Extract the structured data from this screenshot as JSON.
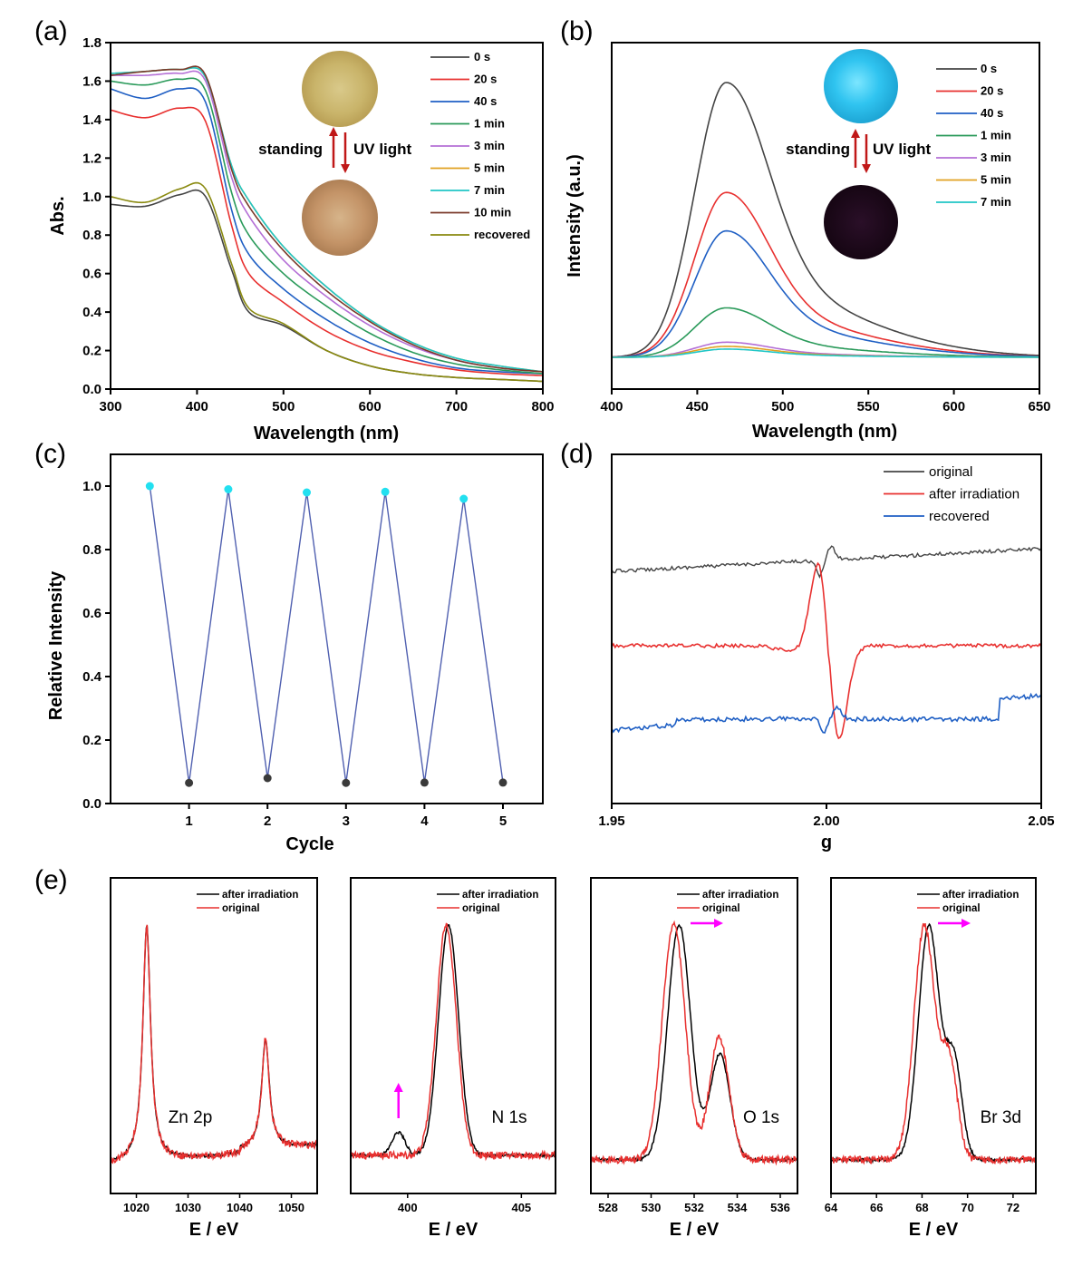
{
  "panel_labels": [
    "(a)",
    "(b)",
    "(c)",
    "(d)",
    "(e)"
  ],
  "chart_data": [
    {
      "id": "a",
      "type": "line",
      "xlabel": "Wavelength (nm)",
      "ylabel": "Abs.",
      "xlim": [
        300,
        800
      ],
      "ylim": [
        0.0,
        1.8
      ],
      "xticks": [
        300,
        400,
        500,
        600,
        700,
        800
      ],
      "yticks": [
        "0.0",
        "0.2",
        "0.4",
        "0.6",
        "0.8",
        "1.0",
        "1.2",
        "1.4",
        "1.6",
        "1.8"
      ],
      "annotations": {
        "top": "standing",
        "right": "UV light"
      },
      "series": [
        {
          "name": "0 s",
          "color": "#444444",
          "x": [
            300,
            340,
            380,
            410,
            440,
            460,
            500,
            550,
            600,
            650,
            700,
            750,
            800
          ],
          "y": [
            0.96,
            0.95,
            1.01,
            1.0,
            0.62,
            0.4,
            0.33,
            0.2,
            0.12,
            0.08,
            0.06,
            0.05,
            0.04
          ]
        },
        {
          "name": "20 s",
          "color": "#e8302f",
          "x": [
            300,
            340,
            380,
            410,
            440,
            460,
            500,
            550,
            600,
            650,
            700,
            750,
            800
          ],
          "y": [
            1.45,
            1.41,
            1.46,
            1.39,
            0.85,
            0.6,
            0.45,
            0.3,
            0.2,
            0.14,
            0.1,
            0.08,
            0.07
          ]
        },
        {
          "name": "40 s",
          "color": "#1f5fc4",
          "x": [
            300,
            340,
            380,
            410,
            440,
            460,
            500,
            550,
            600,
            650,
            700,
            750,
            800
          ],
          "y": [
            1.56,
            1.51,
            1.56,
            1.49,
            0.93,
            0.7,
            0.52,
            0.36,
            0.24,
            0.16,
            0.11,
            0.09,
            0.08
          ]
        },
        {
          "name": "1 min",
          "color": "#2a9a5a",
          "x": [
            300,
            340,
            380,
            410,
            440,
            460,
            500,
            550,
            600,
            650,
            700,
            750,
            800
          ],
          "y": [
            1.6,
            1.58,
            1.61,
            1.55,
            1.02,
            0.8,
            0.6,
            0.43,
            0.29,
            0.19,
            0.13,
            0.1,
            0.08
          ]
        },
        {
          "name": "3 min",
          "color": "#b46fd6",
          "x": [
            300,
            340,
            380,
            410,
            440,
            460,
            500,
            550,
            600,
            650,
            700,
            750,
            800
          ],
          "y": [
            1.63,
            1.63,
            1.64,
            1.6,
            1.1,
            0.9,
            0.67,
            0.48,
            0.33,
            0.22,
            0.15,
            0.11,
            0.09
          ]
        },
        {
          "name": "5 min",
          "color": "#e0a020",
          "x": [
            300,
            340,
            380,
            410,
            440,
            460,
            500,
            550,
            600,
            650,
            700,
            750,
            800
          ],
          "y": [
            1.64,
            1.65,
            1.66,
            1.62,
            1.16,
            0.98,
            0.74,
            0.53,
            0.36,
            0.24,
            0.16,
            0.12,
            0.09
          ]
        },
        {
          "name": "7 min",
          "color": "#20c6c6",
          "x": [
            300,
            340,
            380,
            410,
            440,
            460,
            500,
            550,
            600,
            650,
            700,
            750,
            800
          ],
          "y": [
            1.64,
            1.65,
            1.66,
            1.62,
            1.16,
            0.98,
            0.74,
            0.53,
            0.36,
            0.24,
            0.16,
            0.12,
            0.09
          ]
        },
        {
          "name": "10 min",
          "color": "#7a3a2a",
          "x": [
            300,
            340,
            380,
            410,
            440,
            460,
            500,
            550,
            600,
            650,
            700,
            750,
            800
          ],
          "y": [
            1.63,
            1.65,
            1.66,
            1.63,
            1.14,
            0.95,
            0.72,
            0.51,
            0.35,
            0.23,
            0.15,
            0.11,
            0.09
          ]
        },
        {
          "name": "recovered",
          "color": "#8a8a10",
          "x": [
            300,
            340,
            380,
            410,
            440,
            460,
            500,
            550,
            600,
            650,
            700,
            750,
            800
          ],
          "y": [
            1.0,
            0.97,
            1.04,
            1.04,
            0.65,
            0.42,
            0.34,
            0.2,
            0.12,
            0.08,
            0.06,
            0.05,
            0.04
          ]
        }
      ]
    },
    {
      "id": "b",
      "type": "line",
      "xlabel": "Wavelength (nm)",
      "ylabel": "Intensity (a.u.)",
      "xlim": [
        400,
        650
      ],
      "ylim": [
        0,
        1.1
      ],
      "xticks": [
        400,
        450,
        500,
        550,
        600,
        650
      ],
      "annotations": {
        "top": "standing",
        "right": "UV light"
      },
      "series": [
        {
          "name": "0 s",
          "color": "#444444",
          "peak": 1.0,
          "tail": 0.2
        },
        {
          "name": "20 s",
          "color": "#e8302f",
          "peak": 0.6,
          "tail": 0.18
        },
        {
          "name": "40 s",
          "color": "#1f5fc4",
          "peak": 0.46,
          "tail": 0.17
        },
        {
          "name": "1 min",
          "color": "#2a9a5a",
          "peak": 0.18,
          "tail": 0.06
        },
        {
          "name": "3 min",
          "color": "#b46fd6",
          "peak": 0.055,
          "tail": 0.02
        },
        {
          "name": "5 min",
          "color": "#e0a020",
          "peak": 0.04,
          "tail": 0.015
        },
        {
          "name": "7 min",
          "color": "#20c6c6",
          "peak": 0.03,
          "tail": 0.012
        }
      ]
    },
    {
      "id": "c",
      "type": "line",
      "xlabel": "Cycle",
      "ylabel": "Relative Intensity",
      "xlim": [
        0,
        5.5
      ],
      "ylim": [
        0.0,
        1.1
      ],
      "xticks": [
        1,
        2,
        3,
        4,
        5
      ],
      "yticks": [
        "0.0",
        "0.2",
        "0.4",
        "0.6",
        "0.8",
        "1.0"
      ],
      "line_color": "#5060b0",
      "points": [
        {
          "x": 0.5,
          "y": 1.0,
          "kind": "on"
        },
        {
          "x": 1.0,
          "y": 0.065,
          "kind": "off"
        },
        {
          "x": 1.5,
          "y": 0.99,
          "kind": "on"
        },
        {
          "x": 2.0,
          "y": 0.08,
          "kind": "off"
        },
        {
          "x": 2.5,
          "y": 0.98,
          "kind": "on"
        },
        {
          "x": 3.0,
          "y": 0.065,
          "kind": "off"
        },
        {
          "x": 3.5,
          "y": 0.982,
          "kind": "on"
        },
        {
          "x": 4.0,
          "y": 0.066,
          "kind": "off"
        },
        {
          "x": 4.5,
          "y": 0.96,
          "kind": "on"
        },
        {
          "x": 5.0,
          "y": 0.066,
          "kind": "off"
        }
      ]
    },
    {
      "id": "d",
      "type": "line",
      "xlabel": "g",
      "xlim": [
        1.95,
        2.05
      ],
      "xticks": [
        "1.95",
        "2.00",
        "2.05"
      ],
      "series": [
        {
          "name": "original",
          "color": "#444444",
          "baseline": 0.78,
          "amp": 0.08
        },
        {
          "name": "after irradiation",
          "color": "#e8302f",
          "baseline": 0.5,
          "amp": 0.55
        },
        {
          "name": "recovered",
          "color": "#1f5fc4",
          "baseline": 0.27,
          "amp": 0.06
        }
      ]
    },
    {
      "id": "e1",
      "type": "line",
      "xlabel": "E / eV",
      "label": "Zn 2p",
      "xlim": [
        1015,
        1055
      ],
      "xticks": [
        1020,
        1030,
        1040,
        1050
      ],
      "legend": [
        "after irradiation",
        "original"
      ],
      "peaks": [
        {
          "pos": 1022,
          "height": 1.0
        },
        {
          "pos": 1045,
          "height": 0.5
        }
      ]
    },
    {
      "id": "e2",
      "type": "line",
      "xlabel": "E / eV",
      "label": "N 1s",
      "xlim": [
        397.5,
        406.5
      ],
      "xticks": [
        400,
        405
      ],
      "legend": [
        "after irradiation",
        "original"
      ],
      "peaks": [
        {
          "pos": 401.8,
          "height": 1.0
        },
        {
          "pos": 399.6,
          "height": 0.1
        }
      ]
    },
    {
      "id": "e3",
      "type": "line",
      "xlabel": "E / eV",
      "label": "O 1s",
      "xlim": [
        527.2,
        536.8
      ],
      "xticks": [
        528,
        530,
        532,
        534,
        536
      ],
      "legend": [
        "after irradiation",
        "original"
      ],
      "peaks": [
        {
          "pos": 531.3,
          "height": 1.0
        },
        {
          "pos": 533.2,
          "height": 0.5
        }
      ]
    },
    {
      "id": "e4",
      "type": "line",
      "xlabel": "E / eV",
      "label": "Br 3d",
      "xlim": [
        64,
        73
      ],
      "xticks": [
        64,
        66,
        68,
        70,
        72
      ],
      "legend": [
        "after irradiation",
        "original"
      ],
      "peaks": [
        {
          "pos": 68.3,
          "height": 1.0
        },
        {
          "pos": 69.3,
          "height": 0.55
        }
      ]
    }
  ]
}
